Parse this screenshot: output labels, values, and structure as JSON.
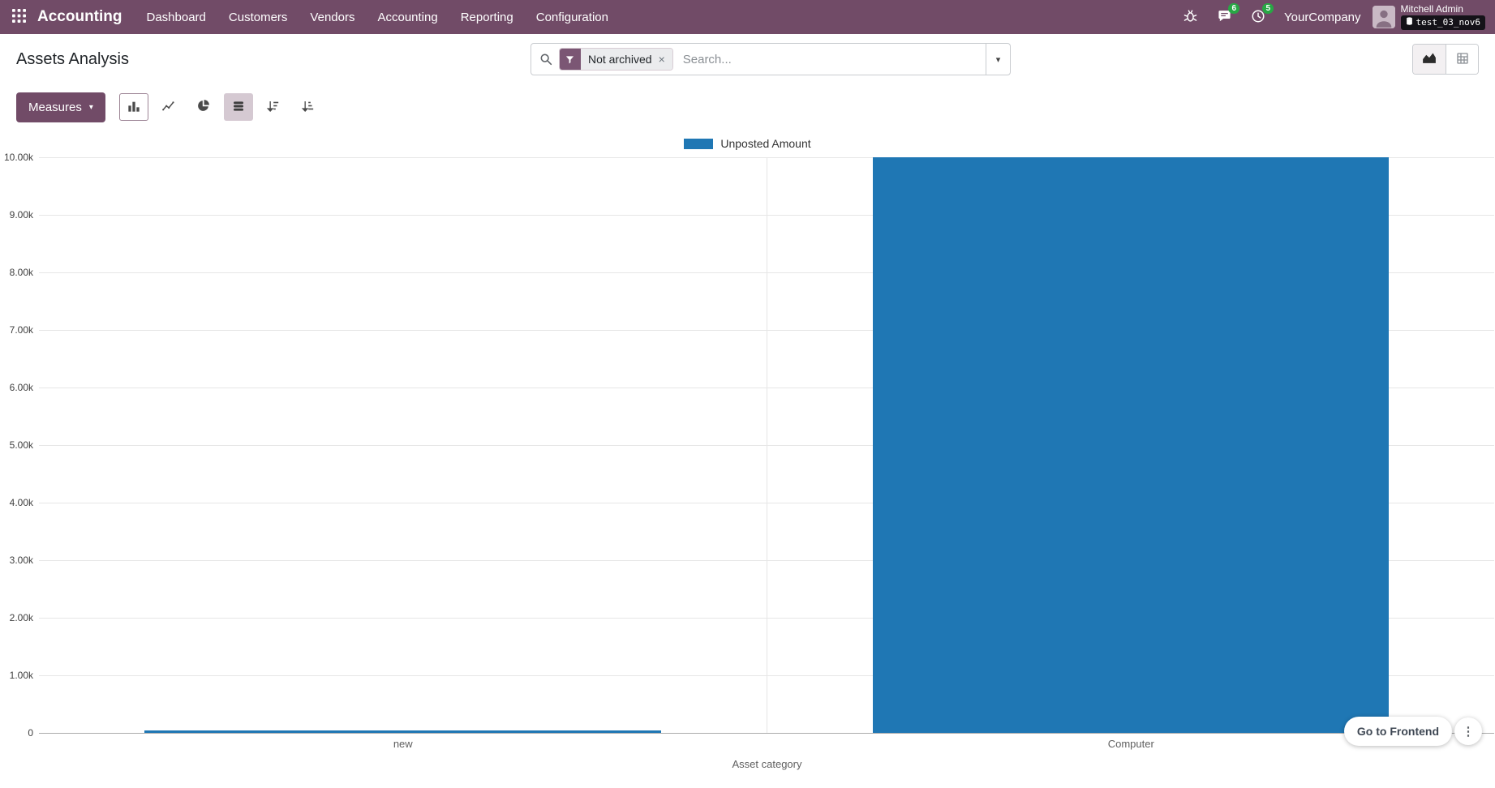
{
  "topbar": {
    "app_name": "Accounting",
    "menu_items": [
      "Dashboard",
      "Customers",
      "Vendors",
      "Accounting",
      "Reporting",
      "Configuration"
    ],
    "messages_badge": "6",
    "activities_badge": "5",
    "company": "YourCompany",
    "user_name": "Mitchell Admin",
    "db_name": "test_03_nov6"
  },
  "control_panel": {
    "title": "Assets Analysis",
    "search": {
      "facet_label": "Not archived",
      "placeholder": "Search..."
    }
  },
  "toolbar": {
    "measures_label": "Measures"
  },
  "chart_data": {
    "type": "bar",
    "title": "",
    "categories": [
      "new",
      "Computer"
    ],
    "series": [
      {
        "name": "Unposted Amount",
        "values": [
          40,
          10000
        ]
      }
    ],
    "xlabel": "Asset category",
    "ylabel": "",
    "ylim": [
      0,
      10000
    ],
    "ytick_labels": [
      "10.00k",
      "9.00k",
      "8.00k",
      "7.00k",
      "6.00k",
      "5.00k",
      "4.00k",
      "3.00k",
      "2.00k",
      "1.00k",
      "0"
    ],
    "legend_position": "top-center",
    "grid": true,
    "bar_color": "#1f77b4"
  },
  "floating": {
    "go_to_frontend_label": "Go to Frontend"
  },
  "glyphs": {
    "close": "×",
    "kebab": "⋮",
    "caret_down": "▾"
  }
}
